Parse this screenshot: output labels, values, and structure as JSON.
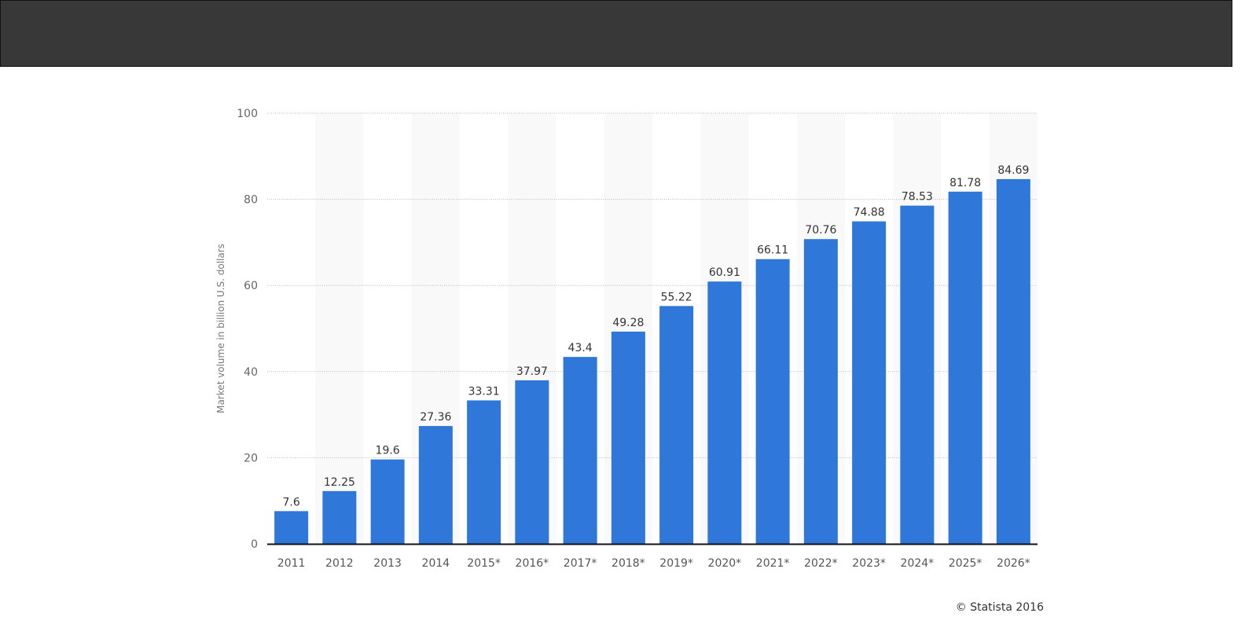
{
  "chart_data": {
    "type": "bar",
    "title": "",
    "xlabel": "",
    "ylabel": "Market volume in billion U.S. dollars",
    "categories": [
      "2011",
      "2012",
      "2013",
      "2014",
      "2015*",
      "2016*",
      "2017*",
      "2018*",
      "2019*",
      "2020*",
      "2021*",
      "2022*",
      "2023*",
      "2024*",
      "2025*",
      "2026*"
    ],
    "values": [
      7.6,
      12.25,
      19.6,
      27.36,
      33.31,
      37.97,
      43.4,
      49.28,
      55.22,
      60.91,
      66.11,
      70.76,
      74.88,
      78.53,
      81.78,
      84.69
    ],
    "value_labels": [
      "7.6",
      "12.25",
      "19.6",
      "27.36",
      "33.31",
      "37.97",
      "43.4",
      "49.28",
      "55.22",
      "60.91",
      "66.11",
      "70.76",
      "74.88",
      "78.53",
      "81.78",
      "84.69"
    ],
    "ylim": [
      0,
      100
    ],
    "yticks": [
      0,
      20,
      40,
      60,
      80,
      100
    ],
    "grid": true,
    "bar_color": "#2f78d9"
  },
  "credit": "© Statista 2016"
}
